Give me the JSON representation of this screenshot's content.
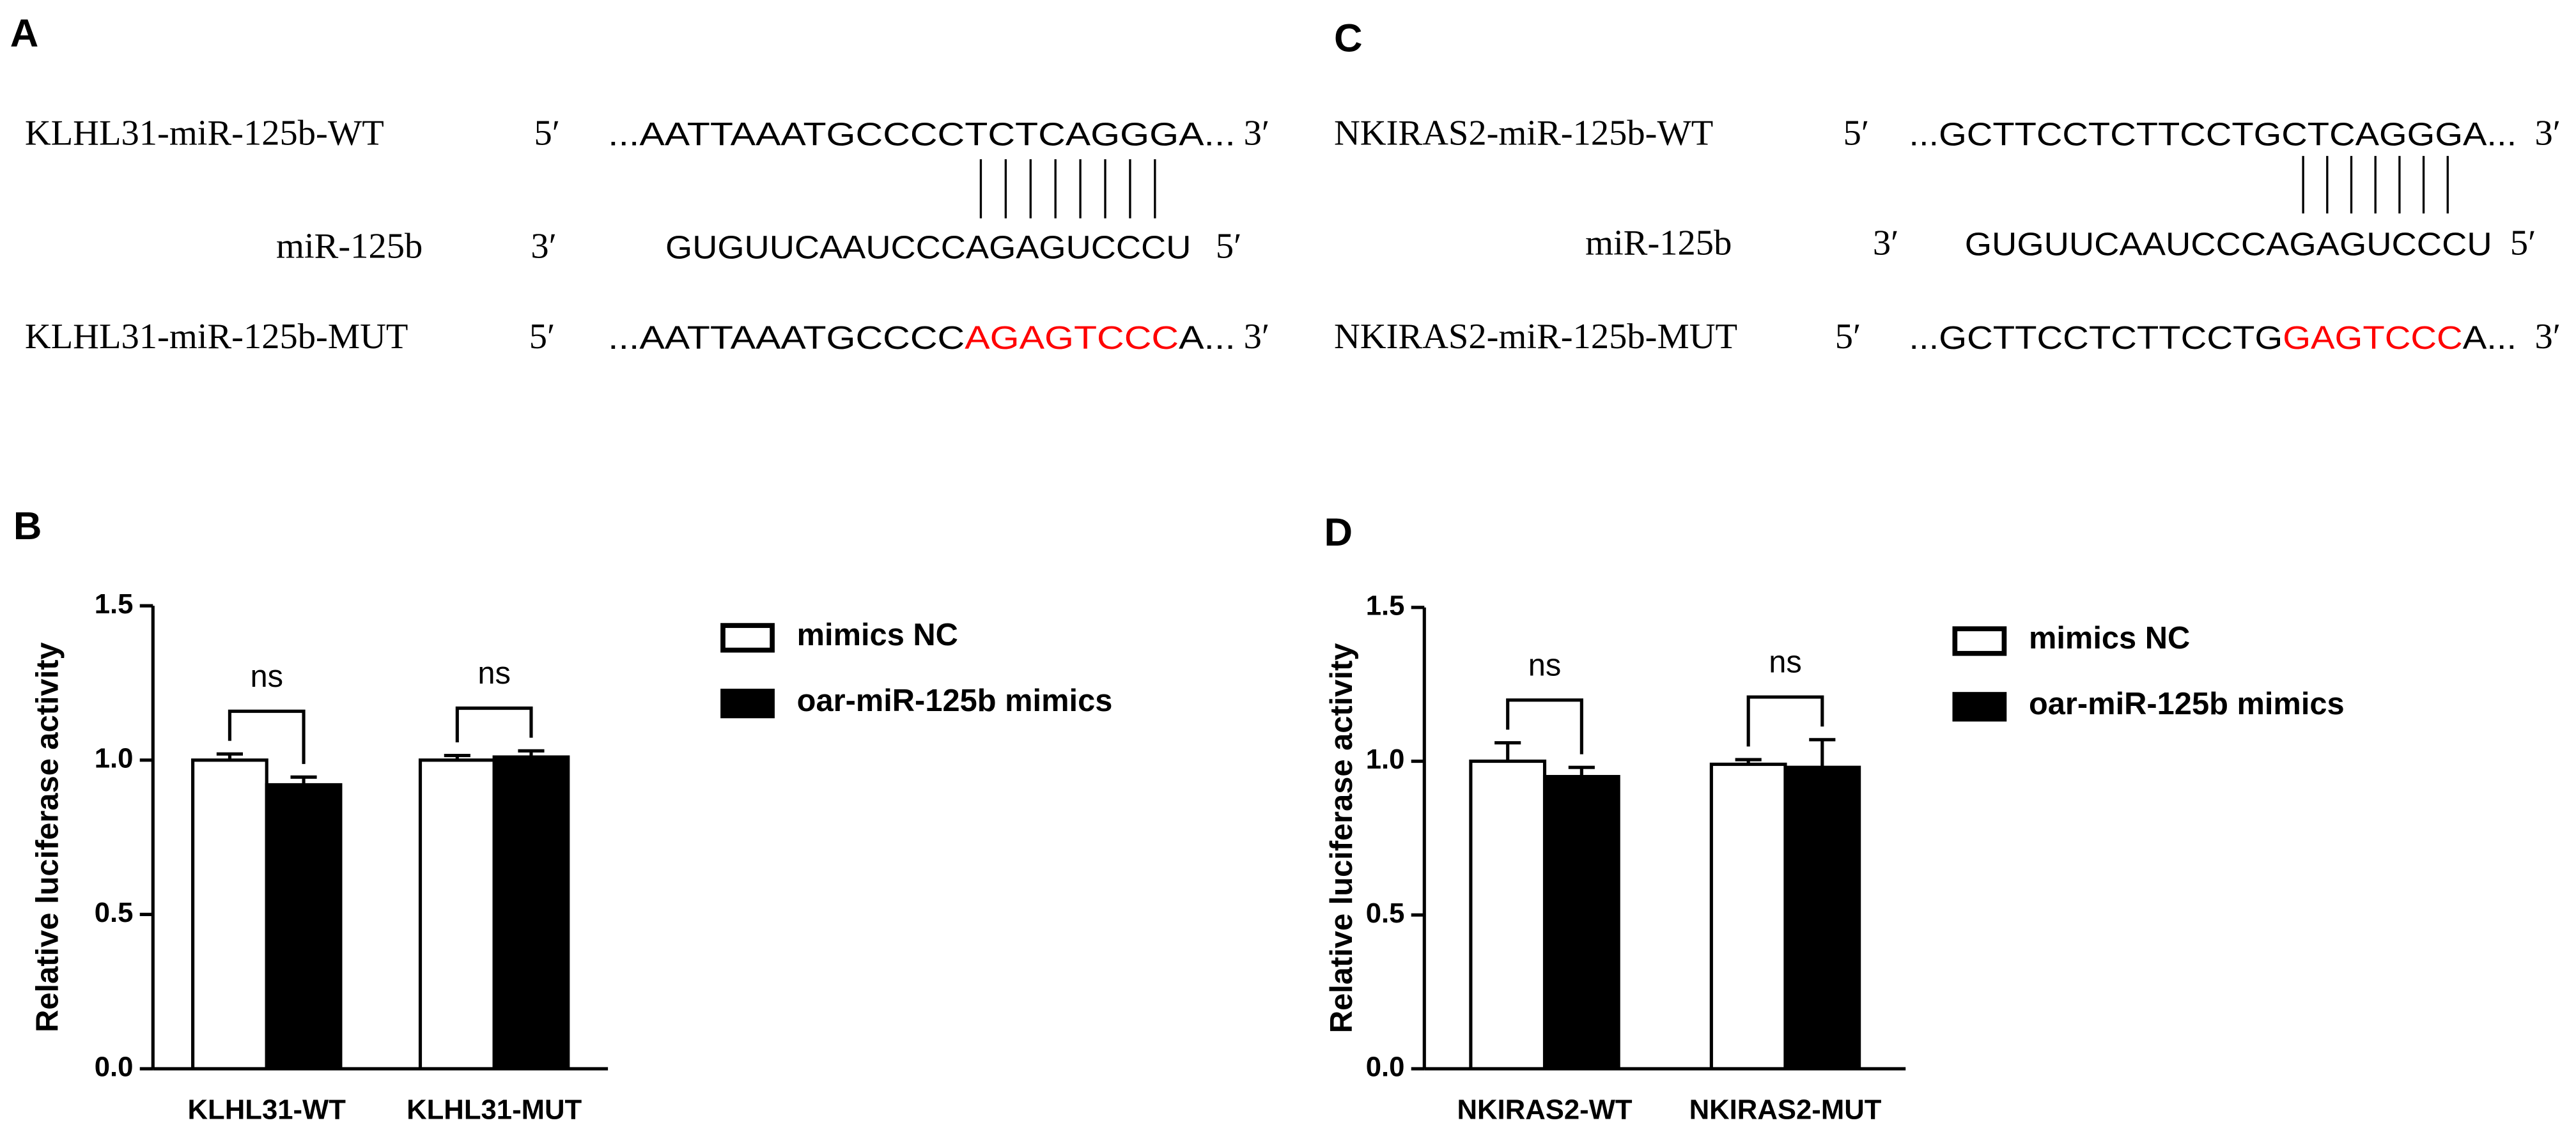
{
  "sequence_panels": [
    {
      "panel": "A",
      "rows": [
        {
          "name": "KLHL31-miR-125b-WT",
          "left": "5′",
          "parts": [
            {
              "text": "...AATTAAATGCCCCTCTCAGGGA..."
            }
          ],
          "right": "3′"
        },
        {
          "name": "miR-125b",
          "left": "3′",
          "parts": [
            {
              "text": "GUGUUCAAUCCCAGAGUCCCU"
            }
          ],
          "right": "5′"
        },
        {
          "name": "KLHL31-miR-125b-MUT",
          "left": "5′",
          "parts": [
            {
              "text": "...AATTAAATGCCCC"
            },
            {
              "text": "AGAGTCCC",
              "color": "#ff0000"
            },
            {
              "text": "A..."
            }
          ],
          "right": "3′"
        }
      ]
    },
    {
      "panel": "C",
      "rows": [
        {
          "name": "NKIRAS2-miR-125b-WT",
          "left": "5′",
          "parts": [
            {
              "text": "...GCTTCCTCTTCCTGCTCAGGGA..."
            }
          ],
          "right": "3′"
        },
        {
          "name": "miR-125b",
          "left": "3′",
          "parts": [
            {
              "text": "GUGUUCAAUCCCAGAGUCCCU"
            }
          ],
          "right": "5′"
        },
        {
          "name": "NKIRAS2-miR-125b-MUT",
          "left": "5′",
          "parts": [
            {
              "text": "...GCTTCCTCTTCCTG"
            },
            {
              "text": "GAGTCCC",
              "color": "#ff0000"
            },
            {
              "text": "A..."
            }
          ],
          "right": "3′"
        }
      ]
    }
  ],
  "chart_data": [
    {
      "type": "bar",
      "panel": "B",
      "y_label": "Relative luciferase activity",
      "categories": [
        "KLHL31-WT",
        "KLHL31-MUT"
      ],
      "series": [
        {
          "name": "mimics NC",
          "color": "#ffffff",
          "values": [
            1.0,
            1.0
          ],
          "errors": [
            0.02,
            0.015
          ]
        },
        {
          "name": "oar-miR-125b mimics",
          "color": "#000000",
          "values": [
            0.92,
            1.01
          ],
          "errors": [
            0.025,
            0.02
          ]
        }
      ],
      "significance": [
        "ns",
        "ns"
      ],
      "ylim": [
        0,
        1.5
      ],
      "yticks": [
        {
          "value": 0,
          "label": "0.0"
        },
        0.5,
        {
          "value": 1,
          "label": "1.0"
        },
        1.5
      ]
    },
    {
      "type": "bar",
      "panel": "D",
      "y_label": "Relative luciferase activity",
      "categories": [
        "NKIRAS2-WT",
        "NKIRAS2-MUT"
      ],
      "series": [
        {
          "name": "mimics NC",
          "color": "#ffffff",
          "values": [
            1.0,
            0.99
          ],
          "errors": [
            0.06,
            0.015
          ]
        },
        {
          "name": "oar-miR-125b mimics",
          "color": "#000000",
          "values": [
            0.95,
            0.98
          ],
          "errors": [
            0.03,
            0.09
          ]
        }
      ],
      "significance": [
        "ns",
        "ns"
      ],
      "ylim": [
        0,
        1.5
      ],
      "yticks": [
        {
          "value": 0,
          "label": "0.0"
        },
        0.5,
        {
          "value": 1,
          "label": "1.0"
        },
        1.5
      ]
    }
  ]
}
